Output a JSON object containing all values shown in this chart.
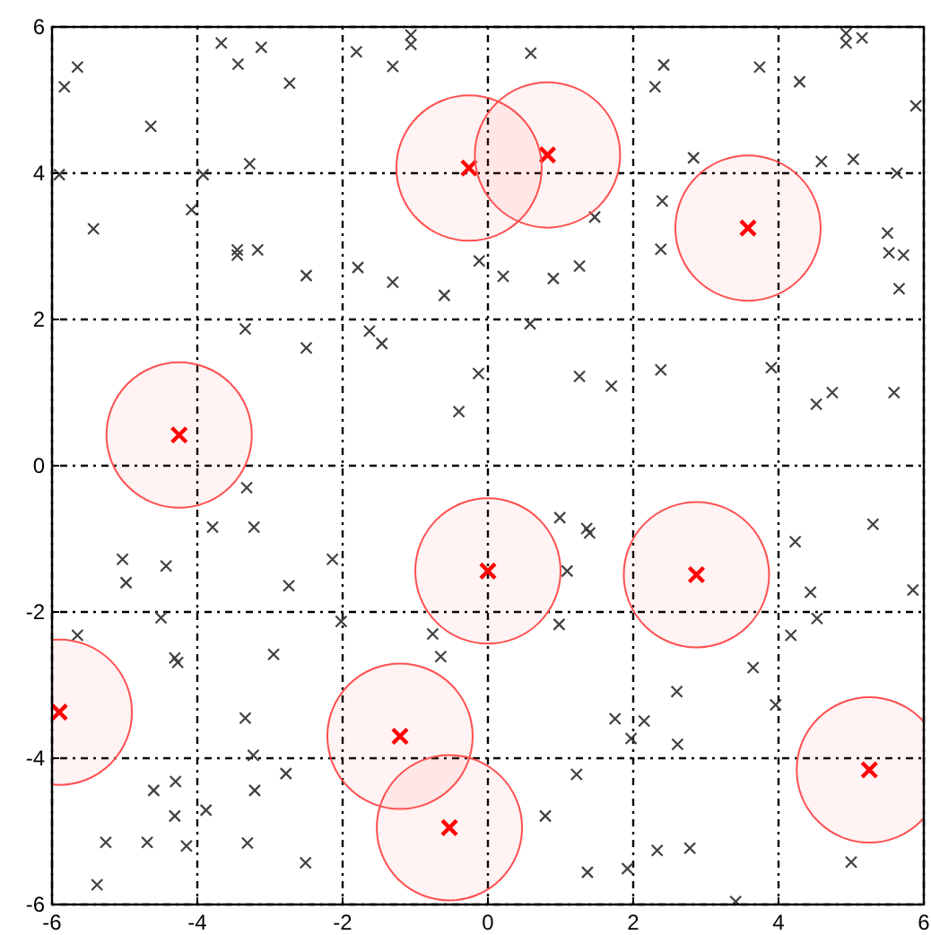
{
  "chart_data": {
    "type": "scatter",
    "xlim": [
      -6,
      6
    ],
    "ylim": [
      -6,
      6
    ],
    "xticks": [
      -6,
      -4,
      -2,
      0,
      2,
      4,
      6
    ],
    "yticks": [
      -6,
      -4,
      -2,
      0,
      2,
      4,
      6
    ],
    "grid": true,
    "marker": "cross",
    "series": [
      {
        "color": "#404040",
        "x": [
          -5.83,
          -5.65,
          -4.64,
          -5.9,
          -5.43,
          -3.67,
          -3.44,
          -3.12,
          -2.73,
          -3.92,
          -3.28,
          -4.08,
          -3.45,
          -3.45,
          -3.17,
          -2.5,
          -3.34,
          -2.5,
          -1.81,
          -1.31,
          -1.06,
          -1.06,
          -1.79,
          -1.31,
          -0.6,
          -1.63,
          -1.46,
          -0.13,
          -0.4,
          -0.12,
          0.59,
          0.21,
          0.9,
          1.26,
          1.47,
          0.58,
          1.26,
          1.7,
          2.42,
          2.3,
          3.74,
          2.83,
          2.4,
          2.38,
          2.38,
          3.9,
          4.29,
          4.93,
          4.93,
          5.15,
          5.89,
          4.59,
          5.03,
          5.63,
          5.5,
          5.52,
          5.72,
          5.66,
          4.52,
          4.74,
          5.59,
          -3.32,
          -3.79,
          -3.22,
          -5.03,
          -4.43,
          -4.98,
          -2.74,
          -2.14,
          -4.5,
          -5.65,
          -4.31,
          -4.27,
          -2.95,
          -2.02,
          -0.76,
          -0.65,
          -3.34,
          -3.23,
          -2.78,
          -4.6,
          -4.3,
          -3.21,
          -4.31,
          -3.88,
          -5.26,
          -4.69,
          -4.15,
          -3.31,
          -2.51,
          -5.38,
          0.99,
          1.36,
          1.4,
          1.09,
          0.98,
          1.22,
          0.79,
          1.37,
          1.75,
          2.15,
          1.97,
          2.6,
          2.61,
          3.65,
          3.96,
          4.23,
          4.44,
          4.53,
          4.17,
          5.3,
          5.85,
          2.33,
          2.78,
          1.92,
          3.41,
          5.0
        ],
        "values": [
          5.18,
          5.45,
          4.64,
          3.98,
          3.24,
          5.78,
          5.49,
          5.72,
          5.23,
          3.98,
          4.13,
          3.5,
          2.95,
          2.88,
          2.95,
          2.6,
          1.87,
          1.61,
          5.66,
          5.46,
          5.89,
          5.76,
          2.71,
          2.51,
          2.33,
          1.84,
          1.67,
          1.26,
          0.74,
          2.8,
          5.64,
          2.59,
          2.56,
          2.73,
          3.4,
          1.94,
          1.22,
          1.09,
          5.48,
          5.18,
          5.45,
          4.21,
          3.62,
          2.96,
          1.31,
          1.34,
          5.25,
          5.78,
          5.91,
          5.85,
          4.92,
          4.16,
          4.19,
          4.0,
          3.18,
          2.91,
          2.88,
          2.42,
          0.84,
          1.0,
          1.0,
          -0.3,
          -0.84,
          -0.84,
          -1.28,
          -1.37,
          -1.6,
          -1.64,
          -1.28,
          -2.08,
          -2.32,
          -2.63,
          -2.69,
          -2.58,
          -2.13,
          -2.3,
          -2.61,
          -3.45,
          -3.96,
          -4.21,
          -4.44,
          -4.32,
          -4.44,
          -4.79,
          -4.71,
          -5.15,
          -5.15,
          -5.2,
          -5.16,
          -5.43,
          -5.73,
          -0.71,
          -0.86,
          -0.92,
          -1.44,
          -2.17,
          -4.22,
          -4.79,
          -5.56,
          -3.46,
          -3.49,
          -3.73,
          -3.09,
          -3.81,
          -2.76,
          -3.27,
          -1.04,
          -1.73,
          -2.09,
          -2.32,
          -0.8,
          -1.7,
          -5.26,
          -5.23,
          -5.51,
          -5.96,
          -5.42
        ]
      },
      {
        "color": "#ff0000",
        "x": [
          -0.26,
          0.82,
          3.58,
          -4.25,
          0,
          2.87,
          -5.9,
          -1.21,
          -0.53,
          5.25
        ],
        "values": [
          4.07,
          4.25,
          3.25,
          0.42,
          -1.44,
          -1.49,
          -3.37,
          -3.7,
          -4.95,
          -4.16
        ]
      },
      {
        "type": "bubble",
        "marker": "circle",
        "color": "#ff5050",
        "x": [
          -0.26,
          0.82,
          3.58,
          -4.25,
          0,
          2.87,
          -5.9,
          -1.21,
          -0.53,
          5.25
        ],
        "values": [
          4.07,
          4.25,
          3.25,
          0.42,
          -1.44,
          -1.49,
          -3.37,
          -3.7,
          -4.95,
          -4.16
        ],
        "sizes": [
          1,
          1,
          1,
          1,
          1,
          1,
          1,
          1,
          1,
          1
        ]
      }
    ]
  }
}
